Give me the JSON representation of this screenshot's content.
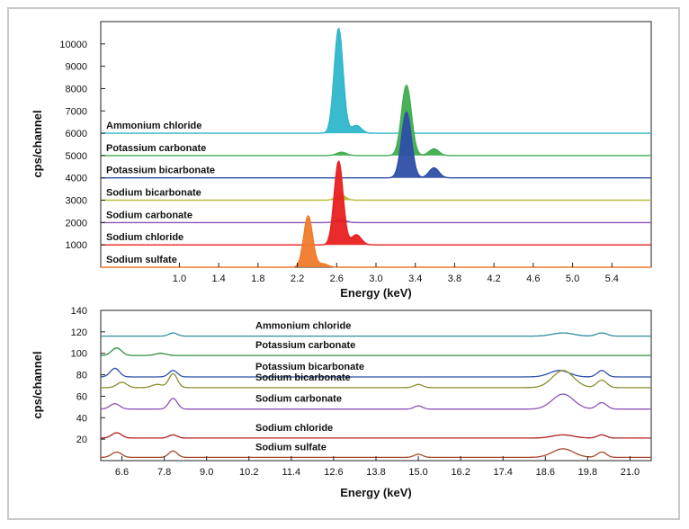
{
  "chart_data": [
    {
      "type": "area",
      "xlabel": "Energy (keV)",
      "ylabel": "cps/channel",
      "xlim": [
        0.2,
        5.8
      ],
      "ylim": [
        0,
        11000
      ],
      "grid": false,
      "x_ticks": [
        "1.0",
        "1.4",
        "1.8",
        "2.2",
        "2.6",
        "3.0",
        "3.4",
        "3.8",
        "4.2",
        "4.6",
        "5.0",
        "5.4"
      ],
      "y_ticks": [
        "1000",
        "2000",
        "3000",
        "4000",
        "5000",
        "6000",
        "7000",
        "8000",
        "9000",
        "10000"
      ],
      "series": [
        {
          "name": "Ammonium chloride",
          "baseline": 6000,
          "color": "#2eb6cc",
          "peaks": [
            {
              "x": 2.62,
              "y": 4700,
              "w": 0.045
            },
            {
              "x": 2.8,
              "y": 350,
              "w": 0.05
            }
          ]
        },
        {
          "name": "Potassium carbonate",
          "baseline": 5000,
          "color": "#3fae4f",
          "peaks": [
            {
              "x": 3.31,
              "y": 3150,
              "w": 0.05
            },
            {
              "x": 3.59,
              "y": 300,
              "w": 0.05
            },
            {
              "x": 2.65,
              "y": 150,
              "w": 0.05
            }
          ]
        },
        {
          "name": "Potassium bicarbonate",
          "baseline": 4000,
          "color": "#2e4fa8",
          "peaks": [
            {
              "x": 3.31,
              "y": 2950,
              "w": 0.05
            },
            {
              "x": 3.59,
              "y": 450,
              "w": 0.05
            }
          ]
        },
        {
          "name": "Sodium bicarbonate",
          "baseline": 3000,
          "color": "#b8bd3a",
          "peaks": [
            {
              "x": 2.64,
              "y": 250,
              "w": 0.05
            }
          ]
        },
        {
          "name": "Sodium carbonate",
          "baseline": 2000,
          "color": "#8a55b5",
          "peaks": [
            {
              "x": 2.64,
              "y": 150,
              "w": 0.05
            }
          ]
        },
        {
          "name": "Sodium chloride",
          "baseline": 1000,
          "color": "#e82020",
          "peaks": [
            {
              "x": 2.62,
              "y": 3750,
              "w": 0.045
            },
            {
              "x": 2.8,
              "y": 450,
              "w": 0.05
            }
          ]
        },
        {
          "name": "Sodium sulfate",
          "baseline": 0,
          "color": "#f07a2a",
          "peaks": [
            {
              "x": 2.31,
              "y": 2300,
              "w": 0.045
            },
            {
              "x": 2.46,
              "y": 150,
              "w": 0.05
            }
          ]
        }
      ]
    },
    {
      "type": "line",
      "xlabel": "Energy (keV)",
      "ylabel": "cps/channel",
      "xlim": [
        6.0,
        21.6
      ],
      "ylim": [
        0,
        140
      ],
      "grid": false,
      "x_ticks": [
        "6.6",
        "7.8",
        "9.0",
        "10.2",
        "11.4",
        "12.6",
        "13.8",
        "15.0",
        "16.2",
        "17.4",
        "18.6",
        "19.8",
        "21.0"
      ],
      "y_ticks": [
        "20",
        "40",
        "60",
        "80",
        "100",
        "120",
        "140"
      ],
      "series": [
        {
          "name": "Ammonium chloride",
          "baseline": 116,
          "color": "#2e8e9e",
          "peaks": [
            {
              "x": 8.05,
              "y": 3,
              "w": 0.12
            },
            {
              "x": 19.1,
              "y": 3,
              "w": 0.3
            },
            {
              "x": 20.2,
              "y": 3,
              "w": 0.15
            }
          ]
        },
        {
          "name": "Potassium carbonate",
          "baseline": 98,
          "color": "#2e8f3f",
          "peaks": [
            {
              "x": 6.45,
              "y": 7,
              "w": 0.14
            },
            {
              "x": 7.7,
              "y": 2,
              "w": 0.15
            }
          ]
        },
        {
          "name": "Potassium bicarbonate",
          "baseline": 78,
          "color": "#2e4fa8",
          "peaks": [
            {
              "x": 6.4,
              "y": 8,
              "w": 0.13
            },
            {
              "x": 8.05,
              "y": 6,
              "w": 0.12
            },
            {
              "x": 19.0,
              "y": 6,
              "w": 0.28
            },
            {
              "x": 20.2,
              "y": 6,
              "w": 0.13
            }
          ]
        },
        {
          "name": "Sodium bicarbonate",
          "baseline": 68,
          "color": "#8a8e2e",
          "peaks": [
            {
              "x": 6.6,
              "y": 5,
              "w": 0.14
            },
            {
              "x": 7.6,
              "y": 3,
              "w": 0.15
            },
            {
              "x": 8.05,
              "y": 13,
              "w": 0.12
            },
            {
              "x": 15.0,
              "y": 3,
              "w": 0.12
            },
            {
              "x": 19.1,
              "y": 16,
              "w": 0.3
            },
            {
              "x": 20.2,
              "y": 7,
              "w": 0.14
            }
          ]
        },
        {
          "name": "Sodium carbonate",
          "baseline": 48,
          "color": "#8a55b5",
          "peaks": [
            {
              "x": 6.4,
              "y": 5,
              "w": 0.14
            },
            {
              "x": 8.05,
              "y": 10,
              "w": 0.12
            },
            {
              "x": 15.0,
              "y": 3,
              "w": 0.12
            },
            {
              "x": 19.1,
              "y": 14,
              "w": 0.3
            },
            {
              "x": 20.2,
              "y": 6,
              "w": 0.14
            }
          ]
        },
        {
          "name": "Sodium chloride",
          "baseline": 21,
          "color": "#b02020",
          "peaks": [
            {
              "x": 6.45,
              "y": 5,
              "w": 0.14
            },
            {
              "x": 8.05,
              "y": 3,
              "w": 0.12
            },
            {
              "x": 19.1,
              "y": 3,
              "w": 0.3
            },
            {
              "x": 20.2,
              "y": 3,
              "w": 0.13
            }
          ]
        },
        {
          "name": "Sodium sulfate",
          "baseline": 3,
          "color": "#a5482a",
          "peaks": [
            {
              "x": 6.45,
              "y": 5,
              "w": 0.14
            },
            {
              "x": 8.05,
              "y": 6,
              "w": 0.12
            },
            {
              "x": 15.0,
              "y": 3,
              "w": 0.12
            },
            {
              "x": 19.1,
              "y": 8,
              "w": 0.3
            },
            {
              "x": 20.2,
              "y": 5,
              "w": 0.13
            }
          ]
        }
      ]
    }
  ]
}
